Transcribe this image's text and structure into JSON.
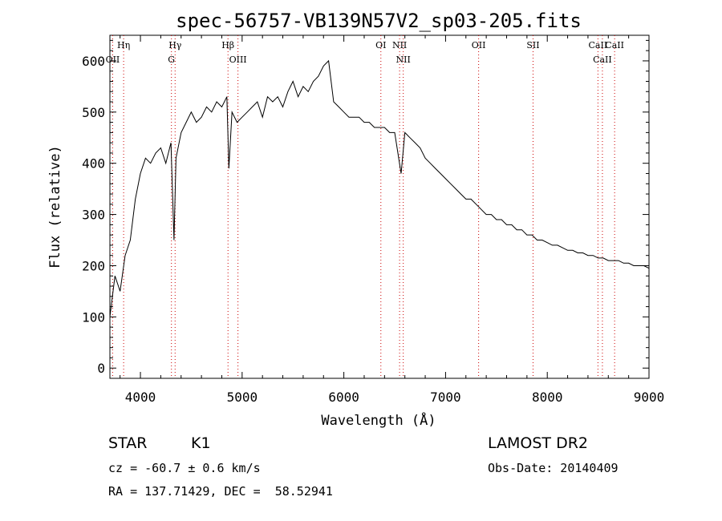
{
  "chart_data": {
    "type": "line",
    "title": "spec-56757-VB139N57V2_sp03-205.fits",
    "xlabel": "Wavelength (Å)",
    "ylabel": "Flux (relative)",
    "xlim": [
      3700,
      9000
    ],
    "ylim": [
      -20,
      650
    ],
    "xticks": [
      4000,
      5000,
      6000,
      7000,
      8000,
      9000
    ],
    "yticks": [
      0,
      100,
      200,
      300,
      400,
      500,
      600
    ],
    "line_color": "#000000",
    "marker_color": "#cc0000",
    "x": [
      3700,
      3750,
      3800,
      3850,
      3900,
      3950,
      4000,
      4050,
      4100,
      4150,
      4200,
      4250,
      4300,
      4330,
      4350,
      4400,
      4450,
      4500,
      4550,
      4600,
      4650,
      4700,
      4750,
      4800,
      4850,
      4870,
      4900,
      4950,
      5000,
      5050,
      5100,
      5150,
      5200,
      5250,
      5300,
      5350,
      5400,
      5450,
      5500,
      5550,
      5600,
      5650,
      5700,
      5750,
      5800,
      5850,
      5900,
      5950,
      6000,
      6050,
      6100,
      6150,
      6200,
      6250,
      6300,
      6350,
      6400,
      6450,
      6500,
      6563,
      6600,
      6650,
      6700,
      6750,
      6800,
      6850,
      6900,
      6950,
      7000,
      7050,
      7100,
      7150,
      7200,
      7250,
      7300,
      7350,
      7400,
      7450,
      7500,
      7550,
      7600,
      7650,
      7700,
      7750,
      7800,
      7850,
      7900,
      7950,
      8000,
      8050,
      8100,
      8150,
      8200,
      8250,
      8300,
      8350,
      8400,
      8450,
      8500,
      8550,
      8600,
      8650,
      8700,
      8750,
      8800,
      8850,
      8900,
      8950,
      9000
    ],
    "y": [
      100,
      180,
      150,
      220,
      250,
      330,
      380,
      410,
      400,
      420,
      430,
      400,
      440,
      250,
      410,
      460,
      480,
      500,
      480,
      490,
      510,
      500,
      520,
      510,
      530,
      390,
      500,
      480,
      490,
      500,
      510,
      520,
      490,
      530,
      520,
      530,
      510,
      540,
      560,
      530,
      550,
      540,
      560,
      570,
      590,
      600,
      520,
      510,
      500,
      490,
      490,
      490,
      480,
      480,
      470,
      470,
      470,
      460,
      460,
      380,
      460,
      450,
      440,
      430,
      410,
      400,
      390,
      380,
      370,
      360,
      350,
      340,
      330,
      330,
      320,
      310,
      300,
      300,
      290,
      290,
      280,
      280,
      270,
      270,
      260,
      260,
      250,
      250,
      245,
      240,
      240,
      235,
      230,
      230,
      225,
      225,
      220,
      220,
      215,
      215,
      210,
      210,
      210,
      205,
      205,
      200,
      200,
      200,
      195
    ],
    "lines": [
      {
        "name": "Hη",
        "wavelength": 3835
      },
      {
        "name": "OII",
        "wavelength": 3727
      },
      {
        "name": "Hγ",
        "wavelength": 4341
      },
      {
        "name": "G",
        "wavelength": 4305
      },
      {
        "name": "Hβ",
        "wavelength": 4861
      },
      {
        "name": "OIII",
        "wavelength": 4959
      },
      {
        "name": "OI",
        "wavelength": 6364
      },
      {
        "name": "NII",
        "wavelength": 6548
      },
      {
        "name": "NII",
        "wavelength": 6584
      },
      {
        "name": "OII",
        "wavelength": 7325
      },
      {
        "name": "SII",
        "wavelength": 7860
      },
      {
        "name": "CaII",
        "wavelength": 8498
      },
      {
        "name": "CaII",
        "wavelength": 8542
      },
      {
        "name": "CaII",
        "wavelength": 8662
      }
    ]
  },
  "info": {
    "class_label": "STAR",
    "subclass": "K1",
    "survey": "LAMOST DR2",
    "cz_text": "cz = -60.7 ± 0.6 km/s",
    "obs_date_text": "Obs-Date: 20140409",
    "radec_text": "RA = 137.71429, DEC =  58.52941"
  }
}
